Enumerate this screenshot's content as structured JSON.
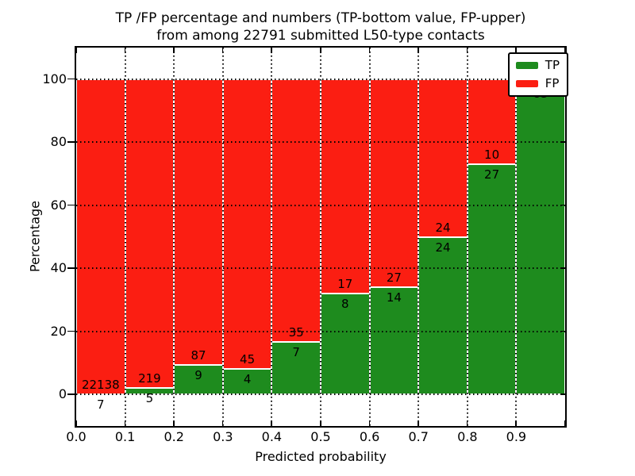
{
  "title": {
    "line1": "TP /FP percentage and numbers (TP-bottom value, FP-upper)",
    "line2": "from among 22791 submitted L50-type contacts"
  },
  "legend": {
    "items": [
      {
        "label": "TP",
        "color": "#1e8b1e"
      },
      {
        "label": "FP",
        "color": "#fb1e12"
      }
    ]
  },
  "chart_data": {
    "type": "bar",
    "stacked": true,
    "title": "TP /FP percentage and numbers (TP-bottom value, FP-upper) from among 22791 submitted L50-type contacts",
    "xlabel": "Predicted probability",
    "ylabel": "Percentage",
    "xlim": [
      0.0,
      1.0
    ],
    "ylim": [
      -10,
      110
    ],
    "x_ticks": [
      "0.0",
      "0.1",
      "0.2",
      "0.3",
      "0.4",
      "0.5",
      "0.6",
      "0.7",
      "0.8",
      "0.9"
    ],
    "y_ticks": [
      0,
      20,
      40,
      60,
      80,
      100
    ],
    "grid": "dotted",
    "legend_position": "upper-right",
    "total_submitted": 22791,
    "series": [
      {
        "name": "TP",
        "color": "#1e8b1e"
      },
      {
        "name": "FP",
        "color": "#fb1e12"
      }
    ],
    "bins": [
      {
        "range": "0.0-0.1",
        "tp_count": 7,
        "fp_count": 22138,
        "tp_pct": 0.03,
        "fp_label_hidden": false
      },
      {
        "range": "0.1-0.2",
        "tp_count": 5,
        "fp_count": 219,
        "tp_pct": 2.2,
        "fp_label_hidden": false
      },
      {
        "range": "0.2-0.3",
        "tp_count": 9,
        "fp_count": 87,
        "tp_pct": 9.4,
        "fp_label_hidden": false
      },
      {
        "range": "0.3-0.4",
        "tp_count": 4,
        "fp_count": 45,
        "tp_pct": 8.2,
        "fp_label_hidden": false
      },
      {
        "range": "0.4-0.5",
        "tp_count": 7,
        "fp_count": 35,
        "tp_pct": 16.7,
        "fp_label_hidden": false
      },
      {
        "range": "0.5-0.6",
        "tp_count": 8,
        "fp_count": 17,
        "tp_pct": 32.0,
        "fp_label_hidden": false
      },
      {
        "range": "0.6-0.7",
        "tp_count": 14,
        "fp_count": 27,
        "tp_pct": 34.1,
        "fp_label_hidden": false
      },
      {
        "range": "0.7-0.8",
        "tp_count": 24,
        "fp_count": 24,
        "tp_pct": 50.0,
        "fp_label_hidden": false
      },
      {
        "range": "0.8-0.9",
        "tp_count": 27,
        "fp_count": 10,
        "tp_pct": 73.0,
        "fp_label_hidden": false
      },
      {
        "range": "0.9-1.0",
        "tp_count": 83,
        "fp_count": null,
        "tp_pct": 98.8,
        "fp_label_hidden": true
      }
    ]
  }
}
